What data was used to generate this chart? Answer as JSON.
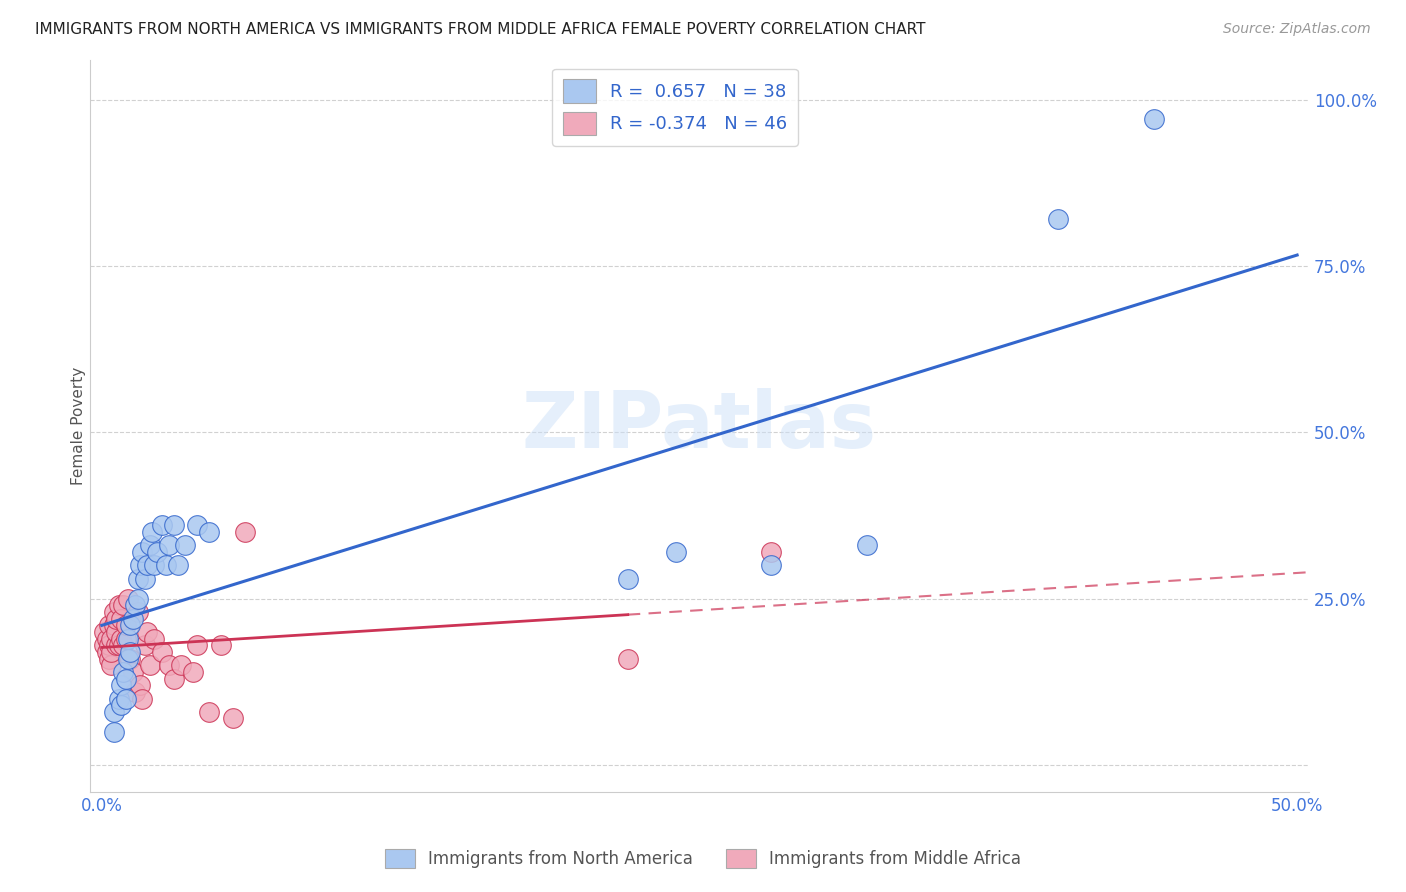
{
  "title": "IMMIGRANTS FROM NORTH AMERICA VS IMMIGRANTS FROM MIDDLE AFRICA FEMALE POVERTY CORRELATION CHART",
  "source": "Source: ZipAtlas.com",
  "ylabel": "Female Poverty",
  "blue_R": 0.657,
  "blue_N": 38,
  "pink_R": -0.374,
  "pink_N": 46,
  "blue_color": "#aac8f0",
  "pink_color": "#f0aabb",
  "blue_line_color": "#3366cc",
  "pink_line_color": "#cc3355",
  "watermark": "ZIPatlas",
  "blue_x": [
    0.005,
    0.005,
    0.007,
    0.008,
    0.008,
    0.009,
    0.01,
    0.01,
    0.011,
    0.011,
    0.012,
    0.012,
    0.013,
    0.014,
    0.015,
    0.015,
    0.016,
    0.017,
    0.018,
    0.019,
    0.02,
    0.021,
    0.022,
    0.023,
    0.025,
    0.027,
    0.028,
    0.03,
    0.032,
    0.035,
    0.04,
    0.045,
    0.22,
    0.24,
    0.28,
    0.32,
    0.4,
    0.44
  ],
  "blue_y": [
    0.05,
    0.08,
    0.1,
    0.09,
    0.12,
    0.14,
    0.1,
    0.13,
    0.16,
    0.19,
    0.17,
    0.21,
    0.22,
    0.24,
    0.25,
    0.28,
    0.3,
    0.32,
    0.28,
    0.3,
    0.33,
    0.35,
    0.3,
    0.32,
    0.36,
    0.3,
    0.33,
    0.36,
    0.3,
    0.33,
    0.36,
    0.35,
    0.28,
    0.32,
    0.3,
    0.33,
    0.82,
    0.97
  ],
  "pink_x": [
    0.001,
    0.001,
    0.002,
    0.002,
    0.003,
    0.003,
    0.003,
    0.004,
    0.004,
    0.004,
    0.005,
    0.005,
    0.006,
    0.006,
    0.006,
    0.007,
    0.007,
    0.008,
    0.008,
    0.009,
    0.009,
    0.01,
    0.01,
    0.011,
    0.012,
    0.013,
    0.014,
    0.015,
    0.016,
    0.017,
    0.018,
    0.019,
    0.02,
    0.022,
    0.025,
    0.028,
    0.03,
    0.033,
    0.038,
    0.04,
    0.045,
    0.05,
    0.055,
    0.06,
    0.22,
    0.28
  ],
  "pink_y": [
    0.18,
    0.2,
    0.17,
    0.19,
    0.16,
    0.18,
    0.21,
    0.15,
    0.17,
    0.19,
    0.21,
    0.23,
    0.18,
    0.2,
    0.22,
    0.18,
    0.24,
    0.19,
    0.22,
    0.18,
    0.24,
    0.19,
    0.21,
    0.25,
    0.16,
    0.14,
    0.11,
    0.23,
    0.12,
    0.1,
    0.18,
    0.2,
    0.15,
    0.19,
    0.17,
    0.15,
    0.13,
    0.15,
    0.14,
    0.18,
    0.08,
    0.18,
    0.07,
    0.35,
    0.16,
    0.32
  ],
  "background_color": "#ffffff",
  "grid_color": "#cccccc",
  "xlim": [
    0.0,
    0.5
  ],
  "ylim": [
    0.0,
    1.05
  ],
  "x_ticks": [
    0.0,
    0.1,
    0.2,
    0.3,
    0.4,
    0.5
  ],
  "y_ticks": [
    0.0,
    0.25,
    0.5,
    0.75,
    1.0
  ],
  "y_tick_labels": [
    "",
    "25.0%",
    "50.0%",
    "75.0%",
    "100.0%"
  ],
  "x_tick_labels": [
    "0.0%",
    "",
    "",
    "",
    "",
    "50.0%"
  ]
}
